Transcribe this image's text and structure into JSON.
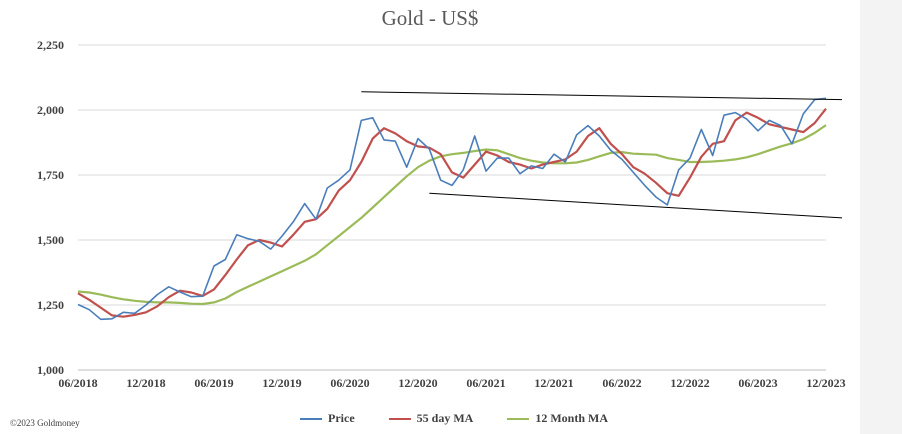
{
  "chart_data": {
    "type": "line",
    "title": "Gold - US$",
    "xlabel": "",
    "ylabel": "",
    "ylim": [
      1000,
      2250
    ],
    "yticks": [
      "1,000",
      "1,250",
      "1,500",
      "1,750",
      "2,000",
      "2,250"
    ],
    "yticks_values": [
      1000,
      1250,
      1500,
      1750,
      2000,
      2250
    ],
    "x_tick_labels": [
      "06/2018",
      "12/2018",
      "06/2019",
      "12/2019",
      "06/2020",
      "12/2020",
      "06/2021",
      "12/2021",
      "06/2022",
      "12/2022",
      "06/2023",
      "12/2023"
    ],
    "x_range": [
      "2018-06",
      "2023-12"
    ],
    "grid": true,
    "legend": "bottom",
    "colors": {
      "price": "#4a7ebb",
      "ma55": "#c0504d",
      "ma12m": "#9bbb59",
      "trend": "#000000"
    },
    "series": [
      {
        "name": "Price",
        "color": "#4a7ebb",
        "points": [
          [
            "2018-06",
            1252
          ],
          [
            "2018-07",
            1232
          ],
          [
            "2018-08",
            1195
          ],
          [
            "2018-09",
            1197
          ],
          [
            "2018-10",
            1222
          ],
          [
            "2018-11",
            1218
          ],
          [
            "2018-12",
            1250
          ],
          [
            "2019-01",
            1290
          ],
          [
            "2019-02",
            1320
          ],
          [
            "2019-03",
            1300
          ],
          [
            "2019-04",
            1282
          ],
          [
            "2019-05",
            1284
          ],
          [
            "2019-06",
            1400
          ],
          [
            "2019-07",
            1425
          ],
          [
            "2019-08",
            1520
          ],
          [
            "2019-09",
            1505
          ],
          [
            "2019-10",
            1495
          ],
          [
            "2019-11",
            1465
          ],
          [
            "2019-12",
            1515
          ],
          [
            "2020-01",
            1570
          ],
          [
            "2020-02",
            1640
          ],
          [
            "2020-03",
            1580
          ],
          [
            "2020-04",
            1700
          ],
          [
            "2020-05",
            1730
          ],
          [
            "2020-06",
            1770
          ],
          [
            "2020-07",
            1960
          ],
          [
            "2020-08",
            1970
          ],
          [
            "2020-09",
            1885
          ],
          [
            "2020-10",
            1880
          ],
          [
            "2020-11",
            1780
          ],
          [
            "2020-12",
            1890
          ],
          [
            "2021-01",
            1850
          ],
          [
            "2021-02",
            1730
          ],
          [
            "2021-03",
            1710
          ],
          [
            "2021-04",
            1770
          ],
          [
            "2021-05",
            1900
          ],
          [
            "2021-06",
            1765
          ],
          [
            "2021-07",
            1815
          ],
          [
            "2021-08",
            1815
          ],
          [
            "2021-09",
            1755
          ],
          [
            "2021-10",
            1785
          ],
          [
            "2021-11",
            1775
          ],
          [
            "2021-12",
            1830
          ],
          [
            "2022-01",
            1800
          ],
          [
            "2022-02",
            1905
          ],
          [
            "2022-03",
            1940
          ],
          [
            "2022-04",
            1900
          ],
          [
            "2022-05",
            1845
          ],
          [
            "2022-06",
            1810
          ],
          [
            "2022-07",
            1760
          ],
          [
            "2022-08",
            1710
          ],
          [
            "2022-09",
            1665
          ],
          [
            "2022-10",
            1635
          ],
          [
            "2022-11",
            1770
          ],
          [
            "2022-12",
            1815
          ],
          [
            "2023-01",
            1925
          ],
          [
            "2023-02",
            1825
          ],
          [
            "2023-03",
            1980
          ],
          [
            "2023-04",
            1990
          ],
          [
            "2023-05",
            1965
          ],
          [
            "2023-06",
            1920
          ],
          [
            "2023-07",
            1960
          ],
          [
            "2023-08",
            1940
          ],
          [
            "2023-09",
            1870
          ],
          [
            "2023-10",
            1985
          ],
          [
            "2023-11",
            2040
          ],
          [
            "2023-12",
            2045
          ]
        ]
      },
      {
        "name": "55 day MA",
        "color": "#c0504d",
        "points": [
          [
            "2018-06",
            1295
          ],
          [
            "2018-07",
            1270
          ],
          [
            "2018-08",
            1240
          ],
          [
            "2018-09",
            1210
          ],
          [
            "2018-10",
            1205
          ],
          [
            "2018-11",
            1212
          ],
          [
            "2018-12",
            1222
          ],
          [
            "2019-01",
            1245
          ],
          [
            "2019-02",
            1280
          ],
          [
            "2019-03",
            1305
          ],
          [
            "2019-04",
            1298
          ],
          [
            "2019-05",
            1285
          ],
          [
            "2019-06",
            1310
          ],
          [
            "2019-07",
            1365
          ],
          [
            "2019-08",
            1425
          ],
          [
            "2019-09",
            1480
          ],
          [
            "2019-10",
            1500
          ],
          [
            "2019-11",
            1490
          ],
          [
            "2019-12",
            1475
          ],
          [
            "2020-01",
            1520
          ],
          [
            "2020-02",
            1570
          ],
          [
            "2020-03",
            1580
          ],
          [
            "2020-04",
            1620
          ],
          [
            "2020-05",
            1690
          ],
          [
            "2020-06",
            1730
          ],
          [
            "2020-07",
            1800
          ],
          [
            "2020-08",
            1890
          ],
          [
            "2020-09",
            1930
          ],
          [
            "2020-10",
            1910
          ],
          [
            "2020-11",
            1880
          ],
          [
            "2020-12",
            1860
          ],
          [
            "2021-01",
            1855
          ],
          [
            "2021-02",
            1830
          ],
          [
            "2021-03",
            1760
          ],
          [
            "2021-04",
            1740
          ],
          [
            "2021-05",
            1790
          ],
          [
            "2021-06",
            1840
          ],
          [
            "2021-07",
            1825
          ],
          [
            "2021-08",
            1800
          ],
          [
            "2021-09",
            1790
          ],
          [
            "2021-10",
            1775
          ],
          [
            "2021-11",
            1790
          ],
          [
            "2021-12",
            1800
          ],
          [
            "2022-01",
            1810
          ],
          [
            "2022-02",
            1840
          ],
          [
            "2022-03",
            1900
          ],
          [
            "2022-04",
            1930
          ],
          [
            "2022-05",
            1870
          ],
          [
            "2022-06",
            1830
          ],
          [
            "2022-07",
            1780
          ],
          [
            "2022-08",
            1755
          ],
          [
            "2022-09",
            1720
          ],
          [
            "2022-10",
            1680
          ],
          [
            "2022-11",
            1670
          ],
          [
            "2022-12",
            1740
          ],
          [
            "2023-01",
            1820
          ],
          [
            "2023-02",
            1870
          ],
          [
            "2023-03",
            1880
          ],
          [
            "2023-04",
            1960
          ],
          [
            "2023-05",
            1990
          ],
          [
            "2023-06",
            1970
          ],
          [
            "2023-07",
            1945
          ],
          [
            "2023-08",
            1935
          ],
          [
            "2023-09",
            1925
          ],
          [
            "2023-10",
            1915
          ],
          [
            "2023-11",
            1950
          ],
          [
            "2023-12",
            2005
          ]
        ]
      },
      {
        "name": "12 Month MA",
        "color": "#9bbb59",
        "points": [
          [
            "2018-06",
            1302
          ],
          [
            "2018-07",
            1298
          ],
          [
            "2018-08",
            1290
          ],
          [
            "2018-09",
            1280
          ],
          [
            "2018-10",
            1272
          ],
          [
            "2018-11",
            1266
          ],
          [
            "2018-12",
            1262
          ],
          [
            "2019-01",
            1260
          ],
          [
            "2019-02",
            1260
          ],
          [
            "2019-03",
            1258
          ],
          [
            "2019-04",
            1255
          ],
          [
            "2019-05",
            1254
          ],
          [
            "2019-06",
            1260
          ],
          [
            "2019-07",
            1275
          ],
          [
            "2019-08",
            1300
          ],
          [
            "2019-09",
            1320
          ],
          [
            "2019-10",
            1340
          ],
          [
            "2019-11",
            1360
          ],
          [
            "2019-12",
            1380
          ],
          [
            "2020-01",
            1400
          ],
          [
            "2020-02",
            1420
          ],
          [
            "2020-03",
            1445
          ],
          [
            "2020-04",
            1480
          ],
          [
            "2020-05",
            1515
          ],
          [
            "2020-06",
            1550
          ],
          [
            "2020-07",
            1585
          ],
          [
            "2020-08",
            1625
          ],
          [
            "2020-09",
            1665
          ],
          [
            "2020-10",
            1705
          ],
          [
            "2020-11",
            1745
          ],
          [
            "2020-12",
            1780
          ],
          [
            "2021-01",
            1805
          ],
          [
            "2021-02",
            1822
          ],
          [
            "2021-03",
            1830
          ],
          [
            "2021-04",
            1835
          ],
          [
            "2021-05",
            1842
          ],
          [
            "2021-06",
            1848
          ],
          [
            "2021-07",
            1845
          ],
          [
            "2021-08",
            1830
          ],
          [
            "2021-09",
            1815
          ],
          [
            "2021-10",
            1805
          ],
          [
            "2021-11",
            1798
          ],
          [
            "2021-12",
            1795
          ],
          [
            "2022-01",
            1795
          ],
          [
            "2022-02",
            1798
          ],
          [
            "2022-03",
            1808
          ],
          [
            "2022-04",
            1822
          ],
          [
            "2022-05",
            1835
          ],
          [
            "2022-06",
            1838
          ],
          [
            "2022-07",
            1832
          ],
          [
            "2022-08",
            1830
          ],
          [
            "2022-09",
            1828
          ],
          [
            "2022-10",
            1815
          ],
          [
            "2022-11",
            1808
          ],
          [
            "2022-12",
            1800
          ],
          [
            "2023-01",
            1800
          ],
          [
            "2023-02",
            1802
          ],
          [
            "2023-03",
            1805
          ],
          [
            "2023-04",
            1810
          ],
          [
            "2023-05",
            1818
          ],
          [
            "2023-06",
            1830
          ],
          [
            "2023-07",
            1845
          ],
          [
            "2023-08",
            1860
          ],
          [
            "2023-09",
            1872
          ],
          [
            "2023-10",
            1888
          ],
          [
            "2023-11",
            1912
          ],
          [
            "2023-12",
            1942
          ]
        ]
      }
    ],
    "trendlines": [
      {
        "x": [
          "2020-07",
          "2023-12"
        ],
        "y": [
          2070,
          2040
        ]
      },
      {
        "x": [
          "2021-01",
          "2023-12"
        ],
        "y": [
          1680,
          1585
        ]
      }
    ]
  },
  "legend": {
    "price": "Price",
    "ma55": "55 day MA",
    "ma12m": "12 Month MA"
  },
  "credit": "©2023 Goldmoney"
}
